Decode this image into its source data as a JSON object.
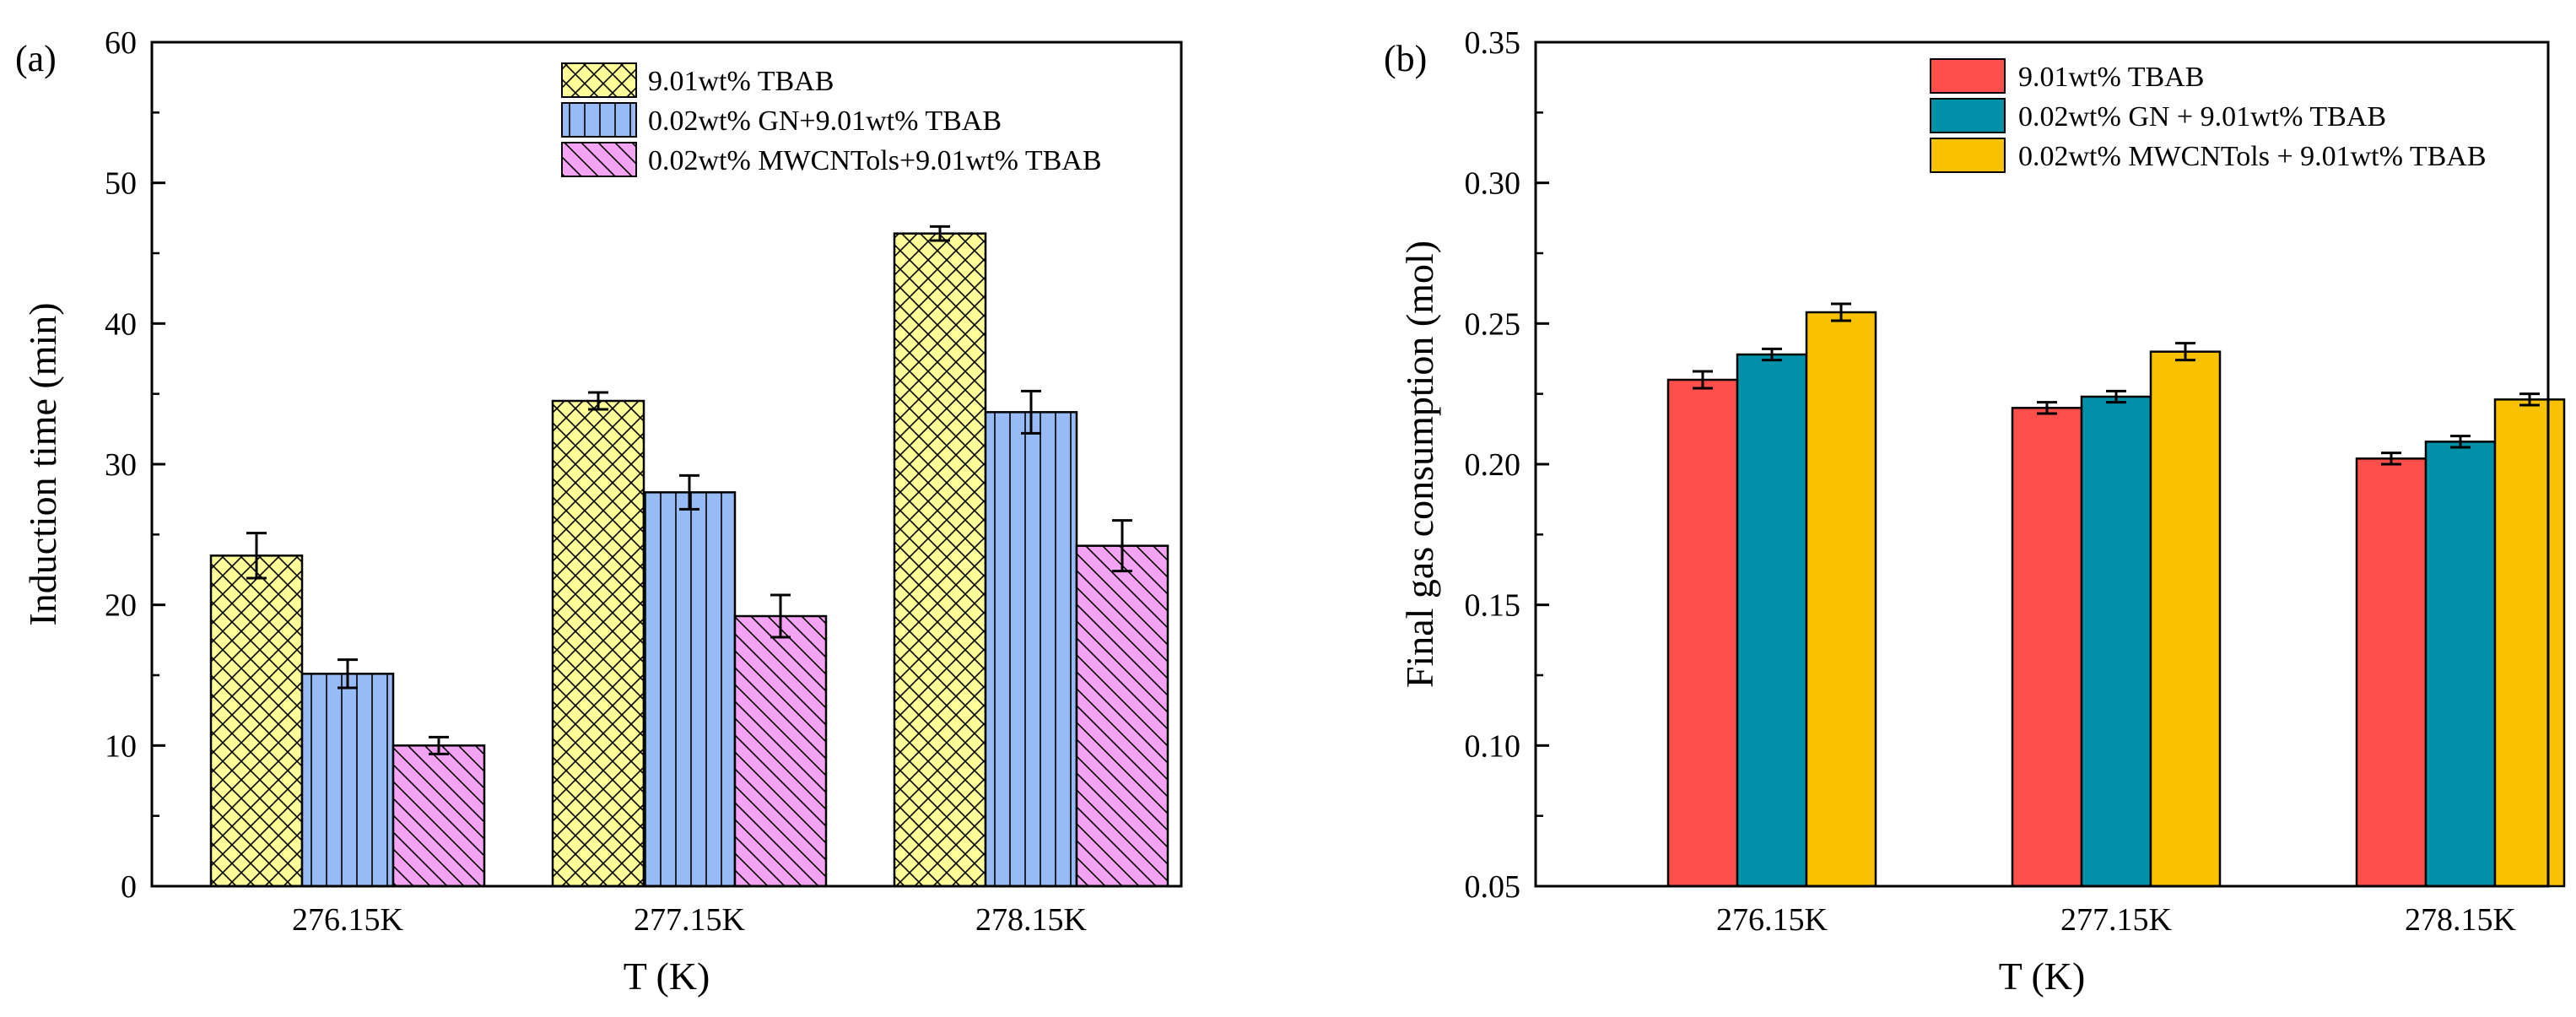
{
  "chart_data": [
    {
      "type": "bar",
      "panel_label": "(a)",
      "categories": [
        "276.15K",
        "277.15K",
        "278.15K"
      ],
      "xlabel": "T (K)",
      "ylabel": "Induction time (min)",
      "ylim": [
        0,
        60
      ],
      "yticks": [
        0,
        10,
        20,
        30,
        40,
        50,
        60
      ],
      "ytick_labels": [
        "0",
        "10",
        "20",
        "30",
        "40",
        "50",
        "60"
      ],
      "legend_position": "top-right",
      "series": [
        {
          "name": "9.01wt% TBAB",
          "values": [
            23.5,
            34.5,
            46.4
          ],
          "errors": [
            1.6,
            0.6,
            0.5
          ],
          "color": "#ffff99",
          "pattern": "crosshatch"
        },
        {
          "name": "0.02wt% GN+9.01wt% TBAB",
          "values": [
            15.1,
            28.0,
            33.7
          ],
          "errors": [
            1.0,
            1.2,
            1.5
          ],
          "color": "#99bbf5",
          "pattern": "vertical"
        },
        {
          "name": "0.02wt% MWCNTols+9.01wt% TBAB",
          "values": [
            10.0,
            19.2,
            24.2
          ],
          "errors": [
            0.6,
            1.5,
            1.8
          ],
          "color": "#f5a3f5",
          "pattern": "diagonal"
        }
      ]
    },
    {
      "type": "bar",
      "panel_label": "(b)",
      "categories": [
        "276.15K",
        "277.15K",
        "278.15K"
      ],
      "xlabel": "T (K)",
      "ylabel": "Final gas consumption (mol)",
      "ylim": [
        0.05,
        0.35
      ],
      "yticks": [
        0.05,
        0.1,
        0.15,
        0.2,
        0.25,
        0.3,
        0.35
      ],
      "ytick_labels": [
        "0.05",
        "0.10",
        "0.15",
        "0.20",
        "0.25",
        "0.30",
        "0.35"
      ],
      "legend_position": "top-right",
      "series": [
        {
          "name": "9.01wt% TBAB",
          "values": [
            0.23,
            0.22,
            0.202
          ],
          "errors": [
            0.003,
            0.002,
            0.002
          ],
          "color": "#ff4f4b",
          "pattern": "solid"
        },
        {
          "name": "0.02wt% GN + 9.01wt% TBAB",
          "values": [
            0.239,
            0.224,
            0.208
          ],
          "errors": [
            0.002,
            0.002,
            0.002
          ],
          "color": "#0090a8",
          "pattern": "solid"
        },
        {
          "name": "0.02wt% MWCNTols + 9.01wt% TBAB",
          "values": [
            0.254,
            0.24,
            0.223
          ],
          "errors": [
            0.003,
            0.003,
            0.002
          ],
          "color": "#f8c200",
          "pattern": "solid"
        }
      ]
    }
  ]
}
